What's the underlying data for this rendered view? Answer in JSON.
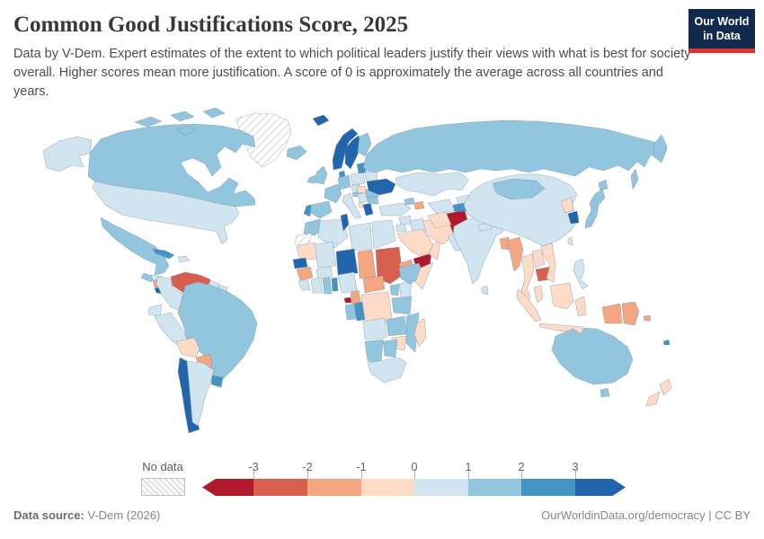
{
  "header": {
    "title": "Common Good Justifications Score, 2025",
    "subtitle": "Data by V-Dem. Expert estimates of the extent to which political leaders justify their views with what is best for society overall. Higher scores mean more justification. A score of 0 is approximately the average across all countries and years.",
    "logo": {
      "line1": "Our World",
      "line2": "in Data",
      "bg_color": "#12294e",
      "accent_color": "#e0352b"
    }
  },
  "legend": {
    "no_data_label": "No data",
    "tick_labels": [
      "-3",
      "-2",
      "-1",
      "0",
      "1",
      "2",
      "3"
    ]
  },
  "footer": {
    "source_label": "Data source:",
    "source_value": " V-Dem (2026)",
    "right_text": "OurWorldinData.org/democracy | CC BY"
  },
  "chart_data": {
    "type": "choropleth-map",
    "title": "Common Good Justifications Score",
    "year": 2025,
    "legend_position": "bottom",
    "color_scale": {
      "thresholds": [
        -3,
        -2,
        -1,
        0,
        1,
        2,
        3
      ],
      "colors": [
        "#b2182b",
        "#d6604d",
        "#f4a582",
        "#fddbc7",
        "#d1e5f0",
        "#92c5de",
        "#4393c3",
        "#2166ac"
      ],
      "no_data": "hatched"
    },
    "countries": [
      {
        "id": "greenland",
        "name": "Greenland",
        "value": null
      },
      {
        "id": "western-sahara",
        "name": "Western Sahara",
        "value": null
      },
      {
        "id": "afghanistan",
        "name": "Afghanistan",
        "value": -3.4
      },
      {
        "id": "yemen",
        "name": "Yemen",
        "value": -3.3
      },
      {
        "id": "equatorial-guinea",
        "name": "Equatorial Guinea",
        "value": -3.2
      },
      {
        "id": "venezuela",
        "name": "Venezuela",
        "value": -2.6
      },
      {
        "id": "sudan",
        "name": "Sudan",
        "value": -2.4
      },
      {
        "id": "cambodia",
        "name": "Cambodia",
        "value": -2.3
      },
      {
        "id": "nicaragua",
        "name": "Nicaragua",
        "value": -1.7
      },
      {
        "id": "paraguay",
        "name": "Paraguay",
        "value": -1.6
      },
      {
        "id": "guinea",
        "name": "Guinea",
        "value": -1.5
      },
      {
        "id": "chad",
        "name": "Chad",
        "value": -1.7
      },
      {
        "id": "central-african-republic",
        "name": "Central African Republic",
        "value": -1.5
      },
      {
        "id": "cameroon",
        "name": "Cameroon",
        "value": -1.3
      },
      {
        "id": "eritrea",
        "name": "Eritrea",
        "value": -1.4
      },
      {
        "id": "azerbaijan",
        "name": "Azerbaijan",
        "value": -1.3
      },
      {
        "id": "myanmar",
        "name": "Myanmar",
        "value": -1.6
      },
      {
        "id": "bangladesh",
        "name": "Bangladesh",
        "value": -1.7
      },
      {
        "id": "papua-new-guinea",
        "name": "Papua New Guinea",
        "value": -1.6
      },
      {
        "id": "indonesia-papua",
        "name": "Indonesia (Papua)",
        "value": -1.2
      },
      {
        "id": "solomon-islands",
        "name": "Solomon Islands",
        "value": -1.8
      },
      {
        "id": "bolivia",
        "name": "Bolivia",
        "value": -0.5
      },
      {
        "id": "mauritania",
        "name": "Mauritania",
        "value": -0.4
      },
      {
        "id": "somalia",
        "name": "Somalia",
        "value": -0.4
      },
      {
        "id": "zimbabwe",
        "name": "Zimbabwe",
        "value": -0.4
      },
      {
        "id": "madagascar",
        "name": "Madagascar",
        "value": -0.5
      },
      {
        "id": "dr-congo",
        "name": "Democratic Republic of Congo",
        "value": -0.6
      },
      {
        "id": "saudi-arabia",
        "name": "Saudi Arabia",
        "value": -0.5
      },
      {
        "id": "iran",
        "name": "Iran",
        "value": -0.4
      },
      {
        "id": "oman",
        "name": "Oman",
        "value": -0.5
      },
      {
        "id": "turkmenistan",
        "name": "Turkmenistan",
        "value": -0.4
      },
      {
        "id": "north-korea",
        "name": "North Korea",
        "value": -0.5
      },
      {
        "id": "thailand",
        "name": "Thailand",
        "value": -0.4
      },
      {
        "id": "laos",
        "name": "Laos",
        "value": -0.5
      },
      {
        "id": "vietnam",
        "name": "Vietnam",
        "value": -0.4
      },
      {
        "id": "malaysia",
        "name": "Malaysia",
        "value": -0.4
      },
      {
        "id": "indonesia",
        "name": "Indonesia",
        "value": -0.4
      },
      {
        "id": "new-zealand",
        "name": "New Zealand",
        "value": -0.3
      },
      {
        "id": "hungary",
        "name": "Hungary",
        "value": -0.3
      },
      {
        "id": "albania",
        "name": "Albania",
        "value": -0.3
      },
      {
        "id": "united-states",
        "name": "United States",
        "value": 0.6
      },
      {
        "id": "colombia",
        "name": "Colombia",
        "value": 0.5
      },
      {
        "id": "ecuador",
        "name": "Ecuador",
        "value": 0.6
      },
      {
        "id": "peru",
        "name": "Peru",
        "value": 0.5
      },
      {
        "id": "argentina",
        "name": "Argentina",
        "value": 0.5
      },
      {
        "id": "guyana",
        "name": "Guyana",
        "value": 0.5
      },
      {
        "id": "suriname",
        "name": "Suriname",
        "value": 0.5
      },
      {
        "id": "dominican-republic",
        "name": "Dominican Republic",
        "value": 0.5
      },
      {
        "id": "honduras",
        "name": "Honduras",
        "value": 0.5
      },
      {
        "id": "algeria",
        "name": "Algeria",
        "value": 0.5
      },
      {
        "id": "libya",
        "name": "Libya",
        "value": 0.5
      },
      {
        "id": "egypt",
        "name": "Egypt",
        "value": 0.5
      },
      {
        "id": "mali",
        "name": "Mali",
        "value": 0.5
      },
      {
        "id": "burkina-faso",
        "name": "Burkina Faso",
        "value": 0.6
      },
      {
        "id": "nigeria",
        "name": "Nigeria",
        "value": 0.5
      },
      {
        "id": "liberia",
        "name": "Liberia",
        "value": 0.5
      },
      {
        "id": "ivory-coast",
        "name": "Cote d'Ivoire",
        "value": 0.6
      },
      {
        "id": "angola",
        "name": "Angola",
        "value": 0.5
      },
      {
        "id": "kenya",
        "name": "Kenya",
        "value": 0.6
      },
      {
        "id": "south-africa",
        "name": "South Africa",
        "value": 0.6
      },
      {
        "id": "italy",
        "name": "Italy",
        "value": 0.6
      },
      {
        "id": "poland",
        "name": "Poland",
        "value": 0.5
      },
      {
        "id": "czechia",
        "name": "Czechia",
        "value": 0.5
      },
      {
        "id": "belarus",
        "name": "Belarus",
        "value": 0.5
      },
      {
        "id": "serbia",
        "name": "Serbia",
        "value": 0.5
      },
      {
        "id": "turkey",
        "name": "Turkey",
        "value": 0.5
      },
      {
        "id": "syria",
        "name": "Syria",
        "value": 0.4
      },
      {
        "id": "jordan",
        "name": "Jordan",
        "value": 0.5
      },
      {
        "id": "iraq",
        "name": "Iraq",
        "value": 0.4
      },
      {
        "id": "kazakhstan",
        "name": "Kazakhstan",
        "value": 0.5
      },
      {
        "id": "uzbekistan",
        "name": "Uzbekistan",
        "value": 0.5
      },
      {
        "id": "kyrgyzstan",
        "name": "Kyrgyzstan",
        "value": 0.5
      },
      {
        "id": "pakistan",
        "name": "Pakistan",
        "value": 0.5
      },
      {
        "id": "india",
        "name": "India",
        "value": 0.5
      },
      {
        "id": "nepal",
        "name": "Nepal",
        "value": 0.5
      },
      {
        "id": "sri-lanka",
        "name": "Sri Lanka",
        "value": 0.4
      },
      {
        "id": "china",
        "name": "China",
        "value": 0.6
      },
      {
        "id": "taiwan",
        "name": "Taiwan",
        "value": 0.5
      },
      {
        "id": "philippines",
        "name": "Philippines",
        "value": 0.5
      },
      {
        "id": "timor-leste",
        "name": "Timor-Leste",
        "value": 0.5
      },
      {
        "id": "canada",
        "name": "Canada",
        "value": 1.5
      },
      {
        "id": "mexico",
        "name": "Mexico",
        "value": 1.4
      },
      {
        "id": "guatemala",
        "name": "Guatemala",
        "value": 1.4
      },
      {
        "id": "brazil",
        "name": "Brazil",
        "value": 1.5
      },
      {
        "id": "iceland",
        "name": "Iceland",
        "value": 1.4
      },
      {
        "id": "united-kingdom",
        "name": "United Kingdom",
        "value": 1.4
      },
      {
        "id": "ireland",
        "name": "Ireland",
        "value": 1.5
      },
      {
        "id": "france",
        "name": "France",
        "value": 1.4
      },
      {
        "id": "spain",
        "name": "Spain",
        "value": 1.5
      },
      {
        "id": "germany",
        "name": "Germany",
        "value": 1.4
      },
      {
        "id": "austria",
        "name": "Austria",
        "value": 1.4
      },
      {
        "id": "finland",
        "name": "Finland",
        "value": 1.5
      },
      {
        "id": "romania",
        "name": "Romania",
        "value": 1.4
      },
      {
        "id": "bulgaria",
        "name": "Bulgaria",
        "value": 1.4
      },
      {
        "id": "russia",
        "name": "Russia",
        "value": 1.4
      },
      {
        "id": "georgia",
        "name": "Georgia",
        "value": 1.4
      },
      {
        "id": "mongolia",
        "name": "Mongolia",
        "value": 1.4
      },
      {
        "id": "japan",
        "name": "Japan",
        "value": 1.4
      },
      {
        "id": "ethiopia",
        "name": "Ethiopia",
        "value": 1.4
      },
      {
        "id": "uganda",
        "name": "Uganda",
        "value": 1.4
      },
      {
        "id": "tanzania",
        "name": "Tanzania",
        "value": 1.4
      },
      {
        "id": "zambia",
        "name": "Zambia",
        "value": 1.4
      },
      {
        "id": "mozambique",
        "name": "Mozambique",
        "value": 1.4
      },
      {
        "id": "namibia",
        "name": "Namibia",
        "value": 1.5
      },
      {
        "id": "botswana",
        "name": "Botswana",
        "value": 1.5
      },
      {
        "id": "morocco",
        "name": "Morocco",
        "value": 1.5
      },
      {
        "id": "ghana",
        "name": "Ghana",
        "value": 1.8
      },
      {
        "id": "gabon",
        "name": "Gabon",
        "value": 1.4
      },
      {
        "id": "australia",
        "name": "Australia",
        "value": 1.5
      },
      {
        "id": "cuba",
        "name": "Cuba",
        "value": 2.4
      },
      {
        "id": "uruguay",
        "name": "Uruguay",
        "value": 2.5
      },
      {
        "id": "portugal",
        "name": "Portugal",
        "value": 2.3
      },
      {
        "id": "denmark",
        "name": "Denmark",
        "value": 2.6
      },
      {
        "id": "estonia",
        "name": "Estonia",
        "value": 2.3
      },
      {
        "id": "congo",
        "name": "Congo",
        "value": 2.4
      },
      {
        "id": "benin",
        "name": "Benin",
        "value": 2.5
      },
      {
        "id": "panama",
        "name": "Panama",
        "value": 2.3
      },
      {
        "id": "tajikistan",
        "name": "Tajikistan",
        "value": 2.4
      },
      {
        "id": "new-caledonia",
        "name": "New Caledonia",
        "value": 2.4
      },
      {
        "id": "chile",
        "name": "Chile",
        "value": 3.3
      },
      {
        "id": "norway",
        "name": "Norway",
        "value": 3.4
      },
      {
        "id": "sweden",
        "name": "Sweden",
        "value": 3.3
      },
      {
        "id": "ukraine",
        "name": "Ukraine",
        "value": 3.2
      },
      {
        "id": "greece",
        "name": "Greece",
        "value": 3.1
      },
      {
        "id": "tunisia",
        "name": "Tunisia",
        "value": 3.2
      },
      {
        "id": "niger",
        "name": "Niger",
        "value": 3.2
      },
      {
        "id": "senegal",
        "name": "Senegal",
        "value": 3.1
      },
      {
        "id": "south-korea",
        "name": "South Korea",
        "value": 3.2
      },
      {
        "id": "costa-rica",
        "name": "Costa Rica",
        "value": 3.1
      }
    ]
  }
}
